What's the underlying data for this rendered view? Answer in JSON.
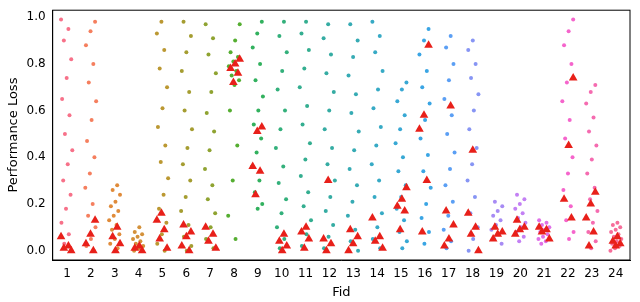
{
  "chart_data": {
    "type": "strip",
    "x_label": "Fid",
    "y_label": "Performance Loss",
    "categories": [
      "1",
      "2",
      "3",
      "4",
      "5",
      "6",
      "7",
      "8",
      "9",
      "10",
      "11",
      "12",
      "13",
      "14",
      "15",
      "16",
      "17",
      "18",
      "19",
      "20",
      "21",
      "22",
      "23",
      "24"
    ],
    "ylim": [
      -0.04,
      1.03
    ],
    "yticks": [
      {
        "value": 0,
        "label": "0.0"
      },
      {
        "value": 0.2,
        "label": "0.2"
      },
      {
        "value": 0.4,
        "label": "0.4"
      },
      {
        "value": 0.6,
        "label": "0.6"
      },
      {
        "value": 0.8,
        "label": "0.8"
      },
      {
        "value": 1.0,
        "label": "1.0"
      }
    ],
    "grid": false,
    "series": [
      {
        "type": "scatter",
        "marker": "circle",
        "colors": [
          "#f77189",
          "#f57f5e",
          "#e08b3a",
          "#d4913a",
          "#bb9832",
          "#a59d31",
          "#8fa331",
          "#55ae31",
          "#32b15e",
          "#33b07b",
          "#34ae90",
          "#35aca3",
          "#36abb4",
          "#37aac5",
          "#38a8d4",
          "#3aa5e4",
          "#5b9ff4",
          "#8795f4",
          "#a78bf4",
          "#c380f4",
          "#e070e8",
          "#f565cc",
          "#f56bb0",
          "#f66e9a"
        ],
        "values": [
          [
            0.99,
            0.95,
            0.9,
            0.82,
            0.74,
            0.65,
            0.58,
            0.5,
            0.43,
            0.37,
            0.3,
            0.24,
            0.18,
            0.12,
            0.07,
            0.03,
            0.0
          ],
          [
            0.98,
            0.94,
            0.88,
            0.8,
            0.72,
            0.64,
            0.56,
            0.47,
            0.4,
            0.33,
            0.27,
            0.2,
            0.15,
            0.1,
            0.05,
            0.02,
            0.0
          ],
          [
            0.28,
            0.26,
            0.24,
            0.21,
            0.19,
            0.17,
            0.15,
            0.13,
            0.11,
            0.09,
            0.07,
            0.05,
            0.03,
            0.01
          ],
          [
            0.1,
            0.08,
            0.07,
            0.06,
            0.05,
            0.04,
            0.03,
            0.02,
            0.01,
            0.0
          ],
          [
            0.98,
            0.93,
            0.86,
            0.78,
            0.7,
            0.61,
            0.53,
            0.45,
            0.38,
            0.31,
            0.24,
            0.18,
            0.12,
            0.07,
            0.03,
            0.0
          ],
          [
            0.98,
            0.92,
            0.85,
            0.77,
            0.68,
            0.6,
            0.52,
            0.44,
            0.37,
            0.3,
            0.23,
            0.17,
            0.11,
            0.06,
            0.02,
            0.0
          ],
          [
            0.97,
            0.91,
            0.84,
            0.76,
            0.68,
            0.59,
            0.51,
            0.43,
            0.35,
            0.28,
            0.22,
            0.16,
            0.1,
            0.05,
            0.01
          ],
          [
            0.97,
            0.9,
            0.85,
            0.83,
            0.81,
            0.79,
            0.77,
            0.75,
            0.73,
            0.71,
            0.6,
            0.45,
            0.3,
            0.15,
            0.05
          ],
          [
            0.98,
            0.93,
            0.87,
            0.8,
            0.73,
            0.66,
            0.6,
            0.54,
            0.48,
            0.42,
            0.36,
            0.3,
            0.25,
            0.2,
            0.18
          ],
          [
            0.98,
            0.92,
            0.85,
            0.77,
            0.69,
            0.6,
            0.52,
            0.44,
            0.36,
            0.29,
            0.22,
            0.16,
            0.1,
            0.05,
            0.01
          ],
          [
            0.98,
            0.93,
            0.86,
            0.78,
            0.7,
            0.62,
            0.54,
            0.46,
            0.39,
            0.32,
            0.25,
            0.19,
            0.13,
            0.07,
            0.02
          ],
          [
            0.97,
            0.91,
            0.84,
            0.76,
            0.68,
            0.6,
            0.52,
            0.44,
            0.37,
            0.3,
            0.23,
            0.17,
            0.11,
            0.06,
            0.01
          ],
          [
            0.97,
            0.9,
            0.83,
            0.75,
            0.67,
            0.59,
            0.51,
            0.43,
            0.35,
            0.28,
            0.21,
            0.15,
            0.09,
            0.04,
            0.0
          ],
          [
            0.98,
            0.92,
            0.85,
            0.77,
            0.69,
            0.61,
            0.53,
            0.45,
            0.37,
            0.3,
            0.23,
            0.16,
            0.1,
            0.05,
            0.01
          ],
          [
            0.72,
            0.69,
            0.64,
            0.58,
            0.52,
            0.46,
            0.4,
            0.34,
            0.28,
            0.23,
            0.18,
            0.13,
            0.08,
            0.04,
            0.01
          ],
          [
            0.95,
            0.9,
            0.84,
            0.77,
            0.7,
            0.63,
            0.56,
            0.48,
            0.41,
            0.34,
            0.27,
            0.2,
            0.14,
            0.08,
            0.03
          ],
          [
            0.92,
            0.87,
            0.8,
            0.73,
            0.65,
            0.58,
            0.5,
            0.42,
            0.35,
            0.28,
            0.21,
            0.15,
            0.09,
            0.04,
            0.01
          ],
          [
            0.9,
            0.86,
            0.8,
            0.74,
            0.67,
            0.6,
            0.52,
            0.44,
            0.37,
            0.3,
            0.23,
            0.16,
            0.1,
            0.05,
            0.0
          ],
          [
            0.21,
            0.19,
            0.17,
            0.15,
            0.13,
            0.11,
            0.09,
            0.07,
            0.05,
            0.03
          ],
          [
            0.24,
            0.22,
            0.2,
            0.18,
            0.16,
            0.14,
            0.12,
            0.1,
            0.08,
            0.06,
            0.04
          ],
          [
            0.13,
            0.12,
            0.11,
            0.1,
            0.09,
            0.08,
            0.07,
            0.06,
            0.05,
            0.04,
            0.03
          ],
          [
            0.99,
            0.94,
            0.88,
            0.8,
            0.72,
            0.64,
            0.56,
            0.48,
            0.4,
            0.33,
            0.26,
            0.19,
            0.13,
            0.08,
            0.05
          ],
          [
            0.71,
            0.68,
            0.63,
            0.57,
            0.51,
            0.45,
            0.39,
            0.33,
            0.27,
            0.22,
            0.17,
            0.12,
            0.08,
            0.04,
            0.01
          ],
          [
            0.12,
            0.11,
            0.1,
            0.09,
            0.08,
            0.07,
            0.06,
            0.05,
            0.04,
            0.03,
            0.02,
            0.01,
            0.0
          ]
        ]
      },
      {
        "type": "scatter",
        "marker": "triangle",
        "color": "#e8201a",
        "values": [
          [
            0.06,
            0.02,
            0.01,
            0.0
          ],
          [
            0.13,
            0.07,
            0.03,
            0.0
          ],
          [
            0.1,
            0.06,
            0.03,
            0.0
          ],
          [
            0.02,
            0.01,
            0.0
          ],
          [
            0.16,
            0.13,
            0.09,
            0.05,
            0.01
          ],
          [
            0.11,
            0.08,
            0.06,
            0.02,
            0.0
          ],
          [
            0.1,
            0.07,
            0.04,
            0.01
          ],
          [
            0.82,
            0.8,
            0.78,
            0.76,
            0.72
          ],
          [
            0.53,
            0.51,
            0.36,
            0.34,
            0.24
          ],
          [
            0.07,
            0.04,
            0.02,
            0.0
          ],
          [
            0.1,
            0.08,
            0.05,
            0.01
          ],
          [
            0.3,
            0.05,
            0.03,
            0.0
          ],
          [
            0.09,
            0.06,
            0.03,
            0.0
          ],
          [
            0.14,
            0.06,
            0.04,
            0.01
          ],
          [
            0.27,
            0.22,
            0.19,
            0.17,
            0.09
          ],
          [
            0.88,
            0.58,
            0.52,
            0.3,
            0.08
          ],
          [
            0.62,
            0.17,
            0.11,
            0.05,
            0.02
          ],
          [
            0.43,
            0.16,
            0.1,
            0.07,
            0.0
          ],
          [
            0.1,
            0.08,
            0.07,
            0.05
          ],
          [
            0.13,
            0.1,
            0.09,
            0.07
          ],
          [
            0.1,
            0.09,
            0.08,
            0.05
          ],
          [
            0.74,
            0.45,
            0.22,
            0.14
          ],
          [
            0.25,
            0.2,
            0.14,
            0.08,
            0.02
          ],
          [
            0.06,
            0.04,
            0.03,
            0.02
          ]
        ]
      }
    ]
  }
}
